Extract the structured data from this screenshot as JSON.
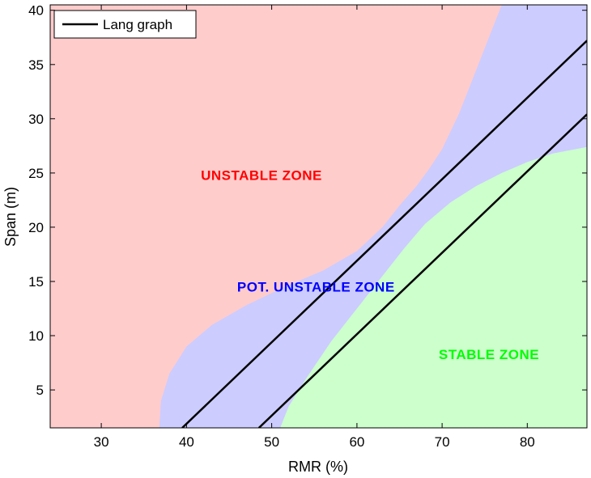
{
  "chart_data": {
    "type": "area",
    "xlabel": "RMR (%)",
    "ylabel": "Span (m)",
    "xlim": [
      24,
      87
    ],
    "ylim": [
      1.5,
      40.5
    ],
    "x_ticks": [
      30,
      40,
      50,
      60,
      70,
      80
    ],
    "y_ticks": [
      5,
      10,
      15,
      20,
      25,
      30,
      35,
      40
    ],
    "grid": false,
    "legend": {
      "position": "top-left",
      "entries": [
        "Lang graph"
      ]
    },
    "series": [
      {
        "name": "Lang graph",
        "x": [
          39.5,
          87
        ],
        "y": [
          1.5,
          37.2
        ]
      },
      {
        "name": "Lang graph",
        "x": [
          48.5,
          87
        ],
        "y": [
          1.5,
          30.4
        ]
      }
    ],
    "zones": [
      {
        "label": "UNSTABLE ZONE",
        "color": "#ffcccc",
        "text_color": "#ff0000",
        "label_at": [
          48.8,
          24.8
        ],
        "boundary": [
          [
            36.8,
            1.5
          ],
          [
            37.0,
            4.0
          ],
          [
            38.0,
            6.5
          ],
          [
            40.0,
            9.0
          ],
          [
            43.0,
            11.0
          ],
          [
            47.0,
            12.8
          ],
          [
            51.5,
            14.5
          ],
          [
            56.0,
            16.0
          ],
          [
            60.0,
            17.8
          ],
          [
            63.0,
            20.0
          ],
          [
            65.0,
            22.0
          ],
          [
            67.0,
            23.8
          ],
          [
            68.5,
            25.4
          ],
          [
            70.0,
            27.2
          ],
          [
            72.0,
            30.5
          ],
          [
            74.0,
            34.5
          ],
          [
            76.0,
            38.5
          ],
          [
            77.0,
            40.5
          ]
        ]
      },
      {
        "label": "POT. UNSTABLE ZONE",
        "color": "#ccccff",
        "text_color": "#0000ff",
        "label_at": [
          55.2,
          14.5
        ]
      },
      {
        "label": "STABLE ZONE",
        "color": "#ccffcc",
        "text_color": "#00ff00",
        "label_at": [
          75.5,
          8.3
        ],
        "boundary": [
          [
            51.0,
            1.5
          ],
          [
            52.0,
            3.5
          ],
          [
            54.0,
            6.0
          ],
          [
            57.0,
            9.5
          ],
          [
            60.0,
            12.5
          ],
          [
            63.0,
            15.5
          ],
          [
            65.5,
            18.0
          ],
          [
            68.0,
            20.3
          ],
          [
            71.0,
            22.3
          ],
          [
            74.0,
            23.8
          ],
          [
            77.0,
            25.0
          ],
          [
            80.0,
            26.0
          ],
          [
            83.0,
            26.8
          ],
          [
            87.0,
            27.4
          ]
        ]
      }
    ]
  }
}
